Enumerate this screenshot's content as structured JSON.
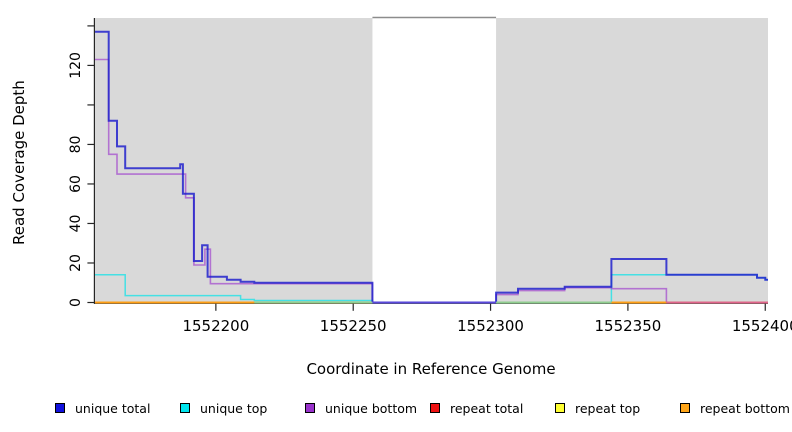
{
  "chart_data": {
    "type": "line",
    "subtype": "step-coverage",
    "title": "",
    "xlabel": "Coordinate in Reference Genome",
    "ylabel": "Read Coverage Depth",
    "xlim": [
      1552156,
      1552401
    ],
    "ylim": [
      0,
      144
    ],
    "grid": false,
    "panel_bg": "#D9D9D9",
    "axis_color": "#262626",
    "x_ticks": [
      {
        "v": 1552200,
        "label": "1552200"
      },
      {
        "v": 1552250,
        "label": "1552250"
      },
      {
        "v": 1552300,
        "label": "1552300"
      },
      {
        "v": 1552350,
        "label": "1552350"
      },
      {
        "v": 1552400,
        "label": "1552400"
      }
    ],
    "y_ticks": [
      {
        "v": 0,
        "label": "0"
      },
      {
        "v": 20,
        "label": "20"
      },
      {
        "v": 40,
        "label": "40"
      },
      {
        "v": 60,
        "label": "60"
      },
      {
        "v": 80,
        "label": "80"
      },
      {
        "v": 100,
        "label": ""
      },
      {
        "v": 120,
        "label": "120"
      },
      {
        "v": 140,
        "label": ""
      }
    ],
    "gap_region": {
      "from": 1552257,
      "to": 1552302,
      "fill": "#FFFFFF",
      "top_border": "#8C8C8C"
    },
    "series": [
      {
        "name": "repeat total",
        "color": "#CC0000",
        "opacity": 0.6,
        "width": 1.5,
        "steps": [
          [
            1552156,
            0
          ]
        ]
      },
      {
        "name": "repeat top",
        "color": "#EEEE00",
        "opacity": 0.6,
        "width": 1.5,
        "steps": [
          [
            1552156,
            0
          ]
        ]
      },
      {
        "name": "repeat bottom",
        "color": "#FFA500",
        "opacity": 1,
        "width": 1.5,
        "steps": [
          [
            1552156,
            0
          ]
        ]
      },
      {
        "name": "unique top",
        "color": "#45E0E4",
        "opacity": 1,
        "width": 1.5,
        "steps": [
          [
            1552156,
            14
          ],
          [
            1552167,
            3.5
          ],
          [
            1552209,
            1.5
          ],
          [
            1552214,
            1
          ],
          [
            1552257,
            0
          ],
          [
            1552344,
            14
          ],
          [
            1552397,
            12.5
          ],
          [
            1552400,
            11.5
          ]
        ]
      },
      {
        "name": "unique bottom",
        "color": "#9932CC",
        "opacity": 0.62,
        "width": 1.6,
        "steps": [
          [
            1552156,
            123
          ],
          [
            1552161,
            75
          ],
          [
            1552164,
            65
          ],
          [
            1552189,
            53
          ],
          [
            1552192,
            19
          ],
          [
            1552196,
            27
          ],
          [
            1552198,
            9.5
          ],
          [
            1552257,
            0
          ],
          [
            1552302,
            4
          ],
          [
            1552310,
            6
          ],
          [
            1552327,
            7.5
          ],
          [
            1552344,
            7
          ],
          [
            1552364,
            0
          ]
        ]
      },
      {
        "name": "unique total",
        "color": "#2222CC",
        "opacity": 0.85,
        "width": 2,
        "steps": [
          [
            1552156,
            137
          ],
          [
            1552161,
            92
          ],
          [
            1552164,
            79
          ],
          [
            1552167,
            68
          ],
          [
            1552187,
            70
          ],
          [
            1552188,
            55
          ],
          [
            1552192,
            21
          ],
          [
            1552195,
            29
          ],
          [
            1552197,
            13
          ],
          [
            1552204,
            11.5
          ],
          [
            1552209,
            10.5
          ],
          [
            1552214,
            10
          ],
          [
            1552257,
            0
          ],
          [
            1552302,
            5
          ],
          [
            1552310,
            7
          ],
          [
            1552327,
            8
          ],
          [
            1552344,
            22
          ],
          [
            1552364,
            14
          ],
          [
            1552397,
            12.5
          ],
          [
            1552400,
            11.5
          ]
        ]
      }
    ],
    "baseline_segments": [
      {
        "from": 1552156,
        "to": 1552214,
        "color": "#FF9E14"
      },
      {
        "from": 1552214,
        "to": 1552257,
        "color": "#8FCE8F"
      },
      {
        "from": 1552257,
        "to": 1552302,
        "color": "#5A48DC"
      },
      {
        "from": 1552302,
        "to": 1552344,
        "color": "#8FCE8F"
      },
      {
        "from": 1552344,
        "to": 1552364,
        "color": "#FF9E14"
      },
      {
        "from": 1552364,
        "to": 1552401,
        "color": "#E0648C"
      }
    ],
    "legend": [
      {
        "label": "unique total",
        "color": "#1111DD"
      },
      {
        "label": "unique top",
        "color": "#00E5EE"
      },
      {
        "label": "unique bottom",
        "color": "#9932CC"
      },
      {
        "label": "repeat total",
        "color": "#EE1111"
      },
      {
        "label": "repeat top",
        "color": "#FFFF33"
      },
      {
        "label": "repeat bottom",
        "color": "#FFA518"
      }
    ],
    "legend_position": "bottom"
  }
}
